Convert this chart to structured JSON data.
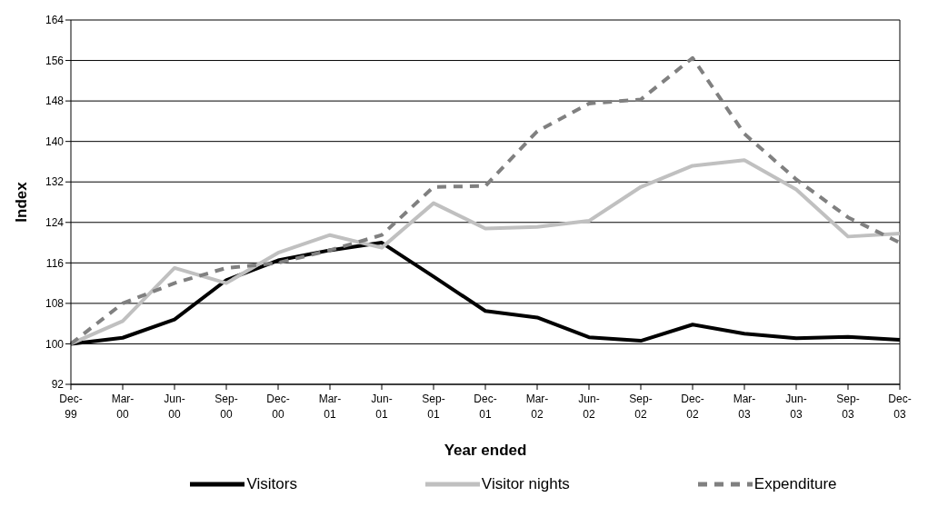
{
  "chart_data": {
    "type": "line",
    "xlabel": "Year ended",
    "ylabel": "Index",
    "categories": [
      "Dec-99",
      "Mar-00",
      "Jun-00",
      "Sep-00",
      "Dec-00",
      "Mar-01",
      "Jun-01",
      "Sep-01",
      "Dec-01",
      "Mar-02",
      "Jun-02",
      "Sep-02",
      "Dec-02",
      "Mar-03",
      "Jun-03",
      "Sep-03",
      "Dec-03"
    ],
    "series": [
      {
        "name": "Visitors",
        "color": "#000000",
        "line_style": "solid",
        "values": [
          100,
          101.2,
          104.8,
          112.6,
          116.5,
          118.5,
          120,
          113.3,
          106.5,
          105.2,
          101.3,
          100.6,
          103.8,
          102,
          101.1,
          101.4,
          100.8
        ]
      },
      {
        "name": "Visitor nights",
        "color": "#c0c0c0",
        "line_style": "solid",
        "values": [
          100,
          104.5,
          115,
          112,
          118,
          121.5,
          119,
          127.8,
          122.8,
          123.1,
          124.3,
          131,
          135.2,
          136.3,
          130.5,
          121.2,
          121.8
        ]
      },
      {
        "name": "Expenditure",
        "color": "#808080",
        "line_style": "dashed",
        "values": [
          100,
          108,
          112,
          115,
          116,
          118.5,
          121.5,
          131,
          131.2,
          142,
          147.5,
          148.3,
          156.5,
          141.5,
          132.5,
          125,
          120
        ]
      }
    ],
    "ylim": [
      92,
      164
    ],
    "yticks": [
      92,
      100,
      108,
      116,
      124,
      132,
      140,
      148,
      156,
      164
    ],
    "grid": "y",
    "legend": "bottom",
    "marker": "none"
  }
}
